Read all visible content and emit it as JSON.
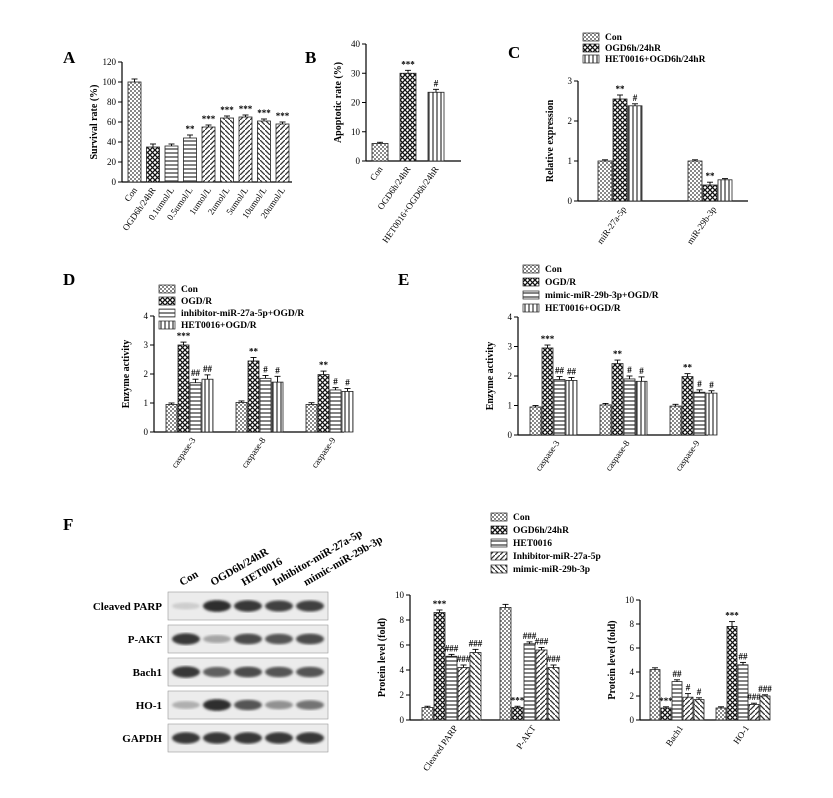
{
  "colors": {
    "ink": "#000000",
    "paper": "#ffffff",
    "bar_edge": "#222222",
    "blot_bg": "#f2f2f2",
    "band": "#2a2a2a"
  },
  "panels": {
    "A": "A",
    "B": "B",
    "C": "C",
    "D": "D",
    "E": "E",
    "F": "F"
  },
  "legends": {
    "C": [
      "Con",
      "OGD6h/24hR",
      "HET0016+OGD6h/24hR"
    ],
    "D": [
      "Con",
      "OGD/R",
      "inhibitor-miR-27a-5p+OGD/R",
      "HET0016+OGD/R"
    ],
    "E": [
      "Con",
      "OGD/R",
      "mimic-miR-29b-3p+OGD/R",
      "HET0016+OGD/R"
    ],
    "F": [
      "Con",
      "OGD6h/24hR",
      "HET0016",
      "Inhibitor-miR-27a-5p",
      "mimic-miR-29b-3p"
    ]
  },
  "blot": {
    "lanes": [
      "Con",
      "OGD6h/24hR",
      "HET0016",
      "Inhibitor-miR-27a-5p",
      "mimic-miR-29b-3p"
    ],
    "rows": [
      "Cleaved PARP",
      "P-AKT",
      "Bach1",
      "HO-1",
      "GAPDH"
    ],
    "intensity": [
      [
        0.15,
        0.95,
        0.9,
        0.85,
        0.85
      ],
      [
        0.9,
        0.35,
        0.8,
        0.75,
        0.8
      ],
      [
        0.9,
        0.7,
        0.8,
        0.75,
        0.75
      ],
      [
        0.3,
        0.95,
        0.75,
        0.45,
        0.6
      ],
      [
        0.9,
        0.9,
        0.9,
        0.9,
        0.9
      ]
    ]
  },
  "chart_data": [
    {
      "panel": "A",
      "type": "bar",
      "ylabel": "Survival rate (%)",
      "ylim": [
        0,
        120
      ],
      "yticks": [
        0,
        20,
        40,
        60,
        80,
        100,
        120
      ],
      "categories": [
        "Con",
        "OGD6h/24hR",
        "0.1umol/L",
        "0.5umol/L",
        "1umol/L",
        "2umol/L",
        "5umol/L",
        "10umol/L",
        "20umol/L"
      ],
      "values": [
        100,
        35,
        36,
        44,
        55,
        64,
        65,
        61,
        58
      ],
      "errors": [
        3,
        3,
        2,
        3,
        2,
        2,
        2,
        2,
        2
      ],
      "significance": [
        "",
        "",
        "",
        "**",
        "***",
        "***",
        "***",
        "***",
        "***"
      ]
    },
    {
      "panel": "B",
      "type": "bar",
      "ylabel": "Apoptotic rate (%)",
      "ylim": [
        0,
        40
      ],
      "yticks": [
        0,
        10,
        20,
        30,
        40
      ],
      "categories": [
        "Con",
        "OGD6h/24hR",
        "HET0016+OGD6h/24hR"
      ],
      "values": [
        6,
        30,
        23.5
      ],
      "errors": [
        0.4,
        1,
        1
      ],
      "significance": [
        "",
        "***",
        "#"
      ]
    },
    {
      "panel": "C",
      "type": "bar",
      "ylabel": "Relative expression",
      "ylim": [
        0,
        3
      ],
      "yticks": [
        0,
        1,
        2,
        3
      ],
      "categories": [
        "miR-27a-5p",
        "miR-29b-3p"
      ],
      "series": [
        {
          "name": "Con",
          "values": [
            1.0,
            1.0
          ],
          "errors": [
            0.03,
            0.03
          ],
          "significance": [
            "",
            ""
          ]
        },
        {
          "name": "OGD6h/24hR",
          "values": [
            2.55,
            0.4
          ],
          "errors": [
            0.1,
            0.07
          ],
          "significance": [
            "**",
            "**"
          ]
        },
        {
          "name": "HET0016+OGD6h/24hR",
          "values": [
            2.38,
            0.53
          ],
          "errors": [
            0.05,
            0.03
          ],
          "significance": [
            "#",
            ""
          ]
        }
      ]
    },
    {
      "panel": "D",
      "type": "bar",
      "ylabel": "Enzyme activity",
      "ylim": [
        0,
        4
      ],
      "yticks": [
        0,
        1,
        2,
        3,
        4
      ],
      "categories": [
        "caspase-3",
        "caspase-8",
        "caspase-9"
      ],
      "series": [
        {
          "name": "Con",
          "values": [
            0.95,
            1.02,
            0.95
          ],
          "errors": [
            0.05,
            0.05,
            0.06
          ],
          "significance": [
            "",
            "",
            ""
          ]
        },
        {
          "name": "OGD/R",
          "values": [
            3.0,
            2.45,
            1.98
          ],
          "errors": [
            0.1,
            0.12,
            0.12
          ],
          "significance": [
            "***",
            "**",
            "**"
          ]
        },
        {
          "name": "inhibitor-miR-27a-5p+OGD/R",
          "values": [
            1.7,
            1.85,
            1.45
          ],
          "errors": [
            0.12,
            0.1,
            0.08
          ],
          "significance": [
            "##",
            "#",
            "#"
          ]
        },
        {
          "name": "HET0016+OGD/R",
          "values": [
            1.82,
            1.72,
            1.4
          ],
          "errors": [
            0.15,
            0.2,
            0.1
          ],
          "significance": [
            "##",
            "#",
            "#"
          ]
        }
      ]
    },
    {
      "panel": "E",
      "type": "bar",
      "ylabel": "Enzyme activity",
      "ylim": [
        0,
        4
      ],
      "yticks": [
        0,
        1,
        2,
        3,
        4
      ],
      "categories": [
        "caspase-3",
        "caspase-8",
        "caspase-9"
      ],
      "series": [
        {
          "name": "Con",
          "values": [
            0.95,
            1.02,
            0.98
          ],
          "errors": [
            0.05,
            0.05,
            0.06
          ],
          "significance": [
            "",
            "",
            ""
          ]
        },
        {
          "name": "OGD/R",
          "values": [
            2.95,
            2.42,
            1.98
          ],
          "errors": [
            0.1,
            0.12,
            0.1
          ],
          "significance": [
            "***",
            "**",
            "**"
          ]
        },
        {
          "name": "mimic-miR-29b-3p+OGD/R",
          "values": [
            1.88,
            1.9,
            1.45
          ],
          "errors": [
            0.1,
            0.1,
            0.08
          ],
          "significance": [
            "##",
            "#",
            "#"
          ]
        },
        {
          "name": "HET0016+OGD/R",
          "values": [
            1.85,
            1.82,
            1.42
          ],
          "errors": [
            0.1,
            0.15,
            0.08
          ],
          "significance": [
            "##",
            "#",
            "#"
          ]
        }
      ]
    },
    {
      "panel": "F1",
      "type": "bar",
      "ylabel": "Protein level (fold)",
      "ylim": [
        0,
        10
      ],
      "yticks": [
        0,
        2,
        4,
        6,
        8,
        10
      ],
      "categories": [
        "Cleaved PARP",
        "P-AKT"
      ],
      "series": [
        {
          "name": "Con",
          "values": [
            1.0,
            9.0
          ],
          "errors": [
            0.1,
            0.25
          ],
          "significance": [
            "",
            ""
          ]
        },
        {
          "name": "OGD6h/24hR",
          "values": [
            8.6,
            1.0
          ],
          "errors": [
            0.2,
            0.1
          ],
          "significance": [
            "***",
            "***"
          ]
        },
        {
          "name": "HET0016",
          "values": [
            5.1,
            6.1
          ],
          "errors": [
            0.15,
            0.15
          ],
          "significance": [
            "###",
            "###"
          ]
        },
        {
          "name": "Inhibitor-miR-27a-5p",
          "values": [
            4.2,
            5.6
          ],
          "errors": [
            0.2,
            0.2
          ],
          "significance": [
            "###",
            "###"
          ]
        },
        {
          "name": "mimic-miR-29b-3p",
          "values": [
            5.4,
            4.2
          ],
          "errors": [
            0.25,
            0.2
          ],
          "significance": [
            "###",
            "###"
          ]
        }
      ]
    },
    {
      "panel": "F2",
      "type": "bar",
      "ylabel": "Protein level (fold)",
      "ylim": [
        0,
        10
      ],
      "yticks": [
        0,
        2,
        4,
        6,
        8,
        10
      ],
      "categories": [
        "Bach1",
        "HO-1"
      ],
      "series": [
        {
          "name": "Con",
          "values": [
            4.2,
            1.0
          ],
          "errors": [
            0.15,
            0.1
          ],
          "significance": [
            "",
            ""
          ]
        },
        {
          "name": "OGD6h/24hR",
          "values": [
            1.0,
            7.8
          ],
          "errors": [
            0.1,
            0.4
          ],
          "significance": [
            "***",
            "***"
          ]
        },
        {
          "name": "HET0016",
          "values": [
            3.2,
            4.6
          ],
          "errors": [
            0.15,
            0.2
          ],
          "significance": [
            "##",
            "##"
          ]
        },
        {
          "name": "Inhibitor-miR-27a-5p",
          "values": [
            1.9,
            1.3
          ],
          "errors": [
            0.3,
            0.1
          ],
          "significance": [
            "#",
            "###"
          ]
        },
        {
          "name": "mimic-miR-29b-3p",
          "values": [
            1.7,
            2.0
          ],
          "errors": [
            0.15,
            0.1
          ],
          "significance": [
            "#",
            "###"
          ]
        }
      ]
    }
  ]
}
